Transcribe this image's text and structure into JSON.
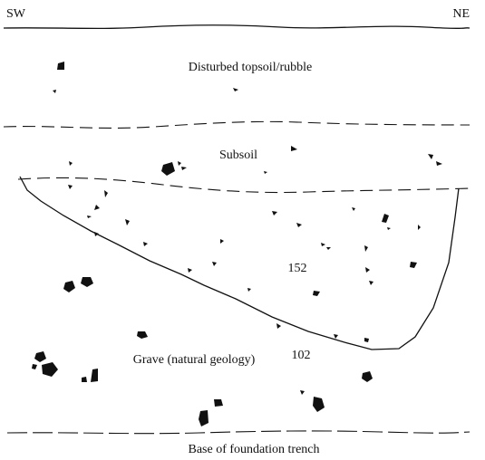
{
  "labels": {
    "left_end": "SW",
    "right_end": "NE",
    "topsoil": "Disturbed topsoil/rubble",
    "subsoil": "Subsoil",
    "fill_context": "152",
    "natural": "Grave (natural geology)",
    "natural_context": "102",
    "base": "Base of foundation trench"
  }
}
